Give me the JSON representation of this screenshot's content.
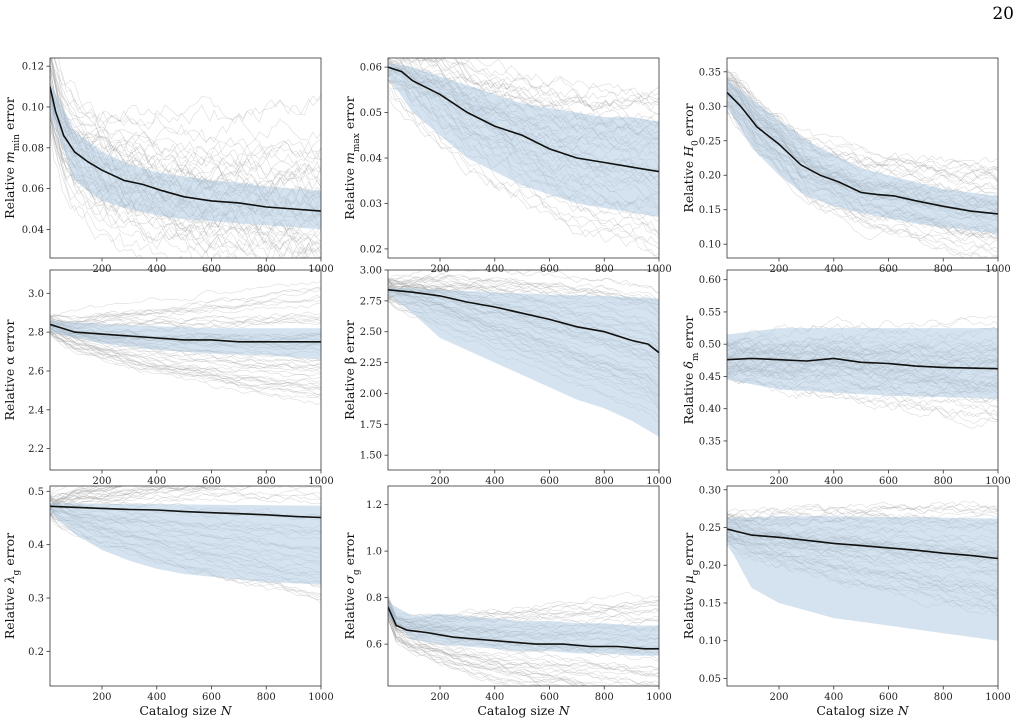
{
  "page_number": "20",
  "style": {
    "band_color": "#a9c8e0",
    "trace_color": "#9a9a9a",
    "median_color": "#111111"
  },
  "xlabel": "Catalog size N",
  "chart_data": [
    {
      "type": "line",
      "ylabel": "Relative m_min error",
      "xlim": [
        10,
        1000
      ],
      "ylim": [
        0.026,
        0.124
      ],
      "xticks": [
        200,
        400,
        600,
        800,
        1000
      ],
      "yticks": [
        0.04,
        0.06,
        0.08,
        0.1,
        0.12
      ],
      "ytick_labels": [
        "0.04",
        "0.06",
        "0.08",
        "0.10",
        "0.12"
      ],
      "median": {
        "x": [
          10,
          30,
          60,
          100,
          150,
          200,
          280,
          350,
          420,
          500,
          600,
          700,
          800,
          900,
          1000
        ],
        "y": [
          0.11,
          0.098,
          0.086,
          0.078,
          0.073,
          0.069,
          0.064,
          0.062,
          0.059,
          0.056,
          0.054,
          0.053,
          0.051,
          0.05,
          0.049
        ]
      },
      "band_upper": {
        "x": [
          10,
          100,
          200,
          300,
          400,
          500,
          600,
          700,
          800,
          900,
          1000
        ],
        "y": [
          0.112,
          0.088,
          0.078,
          0.072,
          0.068,
          0.066,
          0.064,
          0.063,
          0.061,
          0.06,
          0.059
        ]
      },
      "band_lower": {
        "x": [
          10,
          100,
          200,
          300,
          400,
          500,
          600,
          700,
          800,
          900,
          1000
        ],
        "y": [
          0.098,
          0.064,
          0.054,
          0.05,
          0.047,
          0.045,
          0.044,
          0.043,
          0.042,
          0.041,
          0.04
        ]
      },
      "trace_spread": [
        0.02,
        0.035
      ],
      "trace_seed": 11
    },
    {
      "type": "line",
      "ylabel": "Relative m_max error",
      "xlim": [
        10,
        1000
      ],
      "ylim": [
        0.018,
        0.062
      ],
      "xticks": [
        200,
        400,
        600,
        800,
        1000
      ],
      "yticks": [
        0.02,
        0.03,
        0.04,
        0.05,
        0.06
      ],
      "ytick_labels": [
        "0.02",
        "0.03",
        "0.04",
        "0.05",
        "0.06"
      ],
      "median": {
        "x": [
          10,
          60,
          100,
          200,
          300,
          400,
          500,
          600,
          700,
          800,
          900,
          1000
        ],
        "y": [
          0.06,
          0.059,
          0.057,
          0.054,
          0.05,
          0.047,
          0.045,
          0.042,
          0.04,
          0.039,
          0.038,
          0.037
        ]
      },
      "band_upper": {
        "x": [
          10,
          100,
          200,
          300,
          400,
          500,
          600,
          700,
          800,
          900,
          1000
        ],
        "y": [
          0.061,
          0.06,
          0.058,
          0.056,
          0.054,
          0.052,
          0.051,
          0.05,
          0.049,
          0.049,
          0.048
        ]
      },
      "band_lower": {
        "x": [
          10,
          100,
          200,
          300,
          400,
          500,
          600,
          700,
          800,
          900,
          1000
        ],
        "y": [
          0.058,
          0.05,
          0.045,
          0.04,
          0.037,
          0.034,
          0.032,
          0.03,
          0.029,
          0.028,
          0.027
        ]
      },
      "trace_spread": [
        0.006,
        0.014
      ],
      "trace_seed": 23
    },
    {
      "type": "line",
      "ylabel": "Relative H_0 error",
      "xlim": [
        10,
        1000
      ],
      "ylim": [
        0.08,
        0.37
      ],
      "xticks": [
        200,
        400,
        600,
        800,
        1000
      ],
      "yticks": [
        0.1,
        0.15,
        0.2,
        0.25,
        0.3,
        0.35
      ],
      "ytick_labels": [
        "0.10",
        "0.15",
        "0.20",
        "0.25",
        "0.30",
        "0.35"
      ],
      "median": {
        "x": [
          10,
          60,
          120,
          200,
          280,
          350,
          420,
          500,
          560,
          620,
          700,
          800,
          900,
          1000
        ],
        "y": [
          0.32,
          0.3,
          0.27,
          0.245,
          0.215,
          0.2,
          0.19,
          0.175,
          0.172,
          0.17,
          0.163,
          0.155,
          0.148,
          0.144
        ]
      },
      "band_upper": {
        "x": [
          10,
          100,
          200,
          300,
          400,
          500,
          600,
          700,
          800,
          900,
          1000
        ],
        "y": [
          0.34,
          0.31,
          0.28,
          0.25,
          0.23,
          0.21,
          0.2,
          0.19,
          0.18,
          0.175,
          0.17
        ]
      },
      "band_lower": {
        "x": [
          10,
          100,
          200,
          300,
          400,
          500,
          600,
          700,
          800,
          900,
          1000
        ],
        "y": [
          0.3,
          0.24,
          0.2,
          0.17,
          0.155,
          0.145,
          0.138,
          0.13,
          0.125,
          0.12,
          0.115
        ]
      },
      "trace_spread": [
        0.03,
        0.05
      ],
      "trace_seed": 37
    },
    {
      "type": "line",
      "ylabel": "Relative α error",
      "xlim": [
        10,
        1000
      ],
      "ylim": [
        2.09,
        3.12
      ],
      "xticks": [
        200,
        400,
        600,
        800,
        1000
      ],
      "yticks": [
        2.2,
        2.4,
        2.6,
        2.8,
        3.0
      ],
      "ytick_labels": [
        "2.2",
        "2.4",
        "2.6",
        "2.8",
        "3.0"
      ],
      "median": {
        "x": [
          10,
          100,
          200,
          300,
          400,
          500,
          600,
          700,
          800,
          900,
          1000
        ],
        "y": [
          2.84,
          2.8,
          2.79,
          2.78,
          2.77,
          2.76,
          2.76,
          2.75,
          2.75,
          2.75,
          2.75
        ]
      },
      "band_upper": {
        "x": [
          10,
          200,
          400,
          600,
          800,
          1000
        ],
        "y": [
          2.86,
          2.84,
          2.83,
          2.82,
          2.82,
          2.82
        ]
      },
      "band_lower": {
        "x": [
          10,
          200,
          400,
          600,
          800,
          1000
        ],
        "y": [
          2.8,
          2.74,
          2.71,
          2.69,
          2.68,
          2.66
        ]
      },
      "trace_spread": [
        0.05,
        0.3
      ],
      "trace_seed": 41
    },
    {
      "type": "line",
      "ylabel": "Relative β error",
      "xlim": [
        10,
        1000
      ],
      "ylim": [
        1.38,
        3.0
      ],
      "xticks": [
        200,
        400,
        600,
        800,
        1000
      ],
      "yticks": [
        1.5,
        1.75,
        2.0,
        2.25,
        2.5,
        2.75,
        3.0
      ],
      "ytick_labels": [
        "1.50",
        "1.75",
        "2.00",
        "2.25",
        "2.50",
        "2.75",
        "3.00"
      ],
      "median": {
        "x": [
          10,
          100,
          200,
          300,
          400,
          500,
          600,
          700,
          800,
          900,
          960,
          1000
        ],
        "y": [
          2.84,
          2.82,
          2.79,
          2.74,
          2.7,
          2.65,
          2.6,
          2.54,
          2.5,
          2.43,
          2.4,
          2.33
        ]
      },
      "band_upper": {
        "x": [
          10,
          200,
          400,
          600,
          800,
          1000
        ],
        "y": [
          2.86,
          2.84,
          2.82,
          2.8,
          2.79,
          2.77
        ]
      },
      "band_lower": {
        "x": [
          10,
          100,
          200,
          300,
          400,
          500,
          600,
          700,
          800,
          900,
          1000
        ],
        "y": [
          2.8,
          2.65,
          2.45,
          2.35,
          2.25,
          2.15,
          2.05,
          1.95,
          1.88,
          1.78,
          1.65
        ]
      },
      "trace_spread": [
        0.1,
        0.5
      ],
      "trace_seed": 53
    },
    {
      "type": "line",
      "ylabel": "Relative δ_m error",
      "xlim": [
        10,
        1000
      ],
      "ylim": [
        0.305,
        0.615
      ],
      "xticks": [
        200,
        400,
        600,
        800,
        1000
      ],
      "yticks": [
        0.35,
        0.4,
        0.45,
        0.5,
        0.55,
        0.6
      ],
      "ytick_labels": [
        "0.35",
        "0.40",
        "0.45",
        "0.50",
        "0.55",
        "0.60"
      ],
      "median": {
        "x": [
          10,
          100,
          200,
          300,
          400,
          500,
          600,
          700,
          800,
          900,
          1000
        ],
        "y": [
          0.476,
          0.478,
          0.476,
          0.474,
          0.478,
          0.472,
          0.47,
          0.466,
          0.464,
          0.463,
          0.462
        ]
      },
      "band_upper": {
        "x": [
          10,
          200,
          400,
          600,
          800,
          1000
        ],
        "y": [
          0.515,
          0.525,
          0.525,
          0.525,
          0.525,
          0.525
        ]
      },
      "band_lower": {
        "x": [
          10,
          200,
          400,
          600,
          800,
          1000
        ],
        "y": [
          0.445,
          0.43,
          0.425,
          0.42,
          0.418,
          0.415
        ]
      },
      "trace_spread": [
        0.03,
        0.06
      ],
      "trace_seed": 67
    },
    {
      "type": "line",
      "ylabel": "Relative λ_g error",
      "xlim": [
        10,
        1000
      ],
      "ylim": [
        0.135,
        0.51
      ],
      "xticks": [
        200,
        400,
        600,
        800,
        1000
      ],
      "yticks": [
        0.2,
        0.3,
        0.4,
        0.5
      ],
      "ytick_labels": [
        "0.2",
        "0.3",
        "0.4",
        "0.5"
      ],
      "median": {
        "x": [
          10,
          100,
          200,
          300,
          400,
          500,
          600,
          700,
          800,
          900,
          1000
        ],
        "y": [
          0.472,
          0.47,
          0.468,
          0.466,
          0.465,
          0.462,
          0.46,
          0.458,
          0.456,
          0.453,
          0.451
        ]
      },
      "band_upper": {
        "x": [
          10,
          200,
          400,
          600,
          800,
          1000
        ],
        "y": [
          0.478,
          0.477,
          0.476,
          0.475,
          0.474,
          0.473
        ]
      },
      "band_lower": {
        "x": [
          10,
          100,
          200,
          300,
          400,
          500,
          600,
          700,
          800,
          900,
          1000
        ],
        "y": [
          0.46,
          0.42,
          0.39,
          0.37,
          0.355,
          0.345,
          0.34,
          0.335,
          0.33,
          0.328,
          0.325
        ]
      },
      "trace_spread": [
        0.02,
        0.15
      ],
      "trace_seed": 79
    },
    {
      "type": "line",
      "ylabel": "Relative σ_g error",
      "xlim": [
        10,
        1000
      ],
      "ylim": [
        0.42,
        1.28
      ],
      "xticks": [
        200,
        400,
        600,
        800,
        1000
      ],
      "yticks": [
        0.6,
        0.8,
        1.0,
        1.2
      ],
      "ytick_labels": [
        "0.6",
        "0.8",
        "1.0",
        "1.2"
      ],
      "median": {
        "x": [
          10,
          40,
          80,
          150,
          250,
          350,
          450,
          550,
          650,
          750,
          850,
          950,
          1000
        ],
        "y": [
          0.76,
          0.68,
          0.66,
          0.65,
          0.63,
          0.62,
          0.61,
          0.6,
          0.6,
          0.59,
          0.59,
          0.58,
          0.58
        ]
      },
      "band_upper": {
        "x": [
          10,
          100,
          200,
          300,
          400,
          500,
          600,
          700,
          800,
          900,
          1000
        ],
        "y": [
          0.78,
          0.72,
          0.73,
          0.72,
          0.71,
          0.7,
          0.7,
          0.69,
          0.69,
          0.68,
          0.68
        ]
      },
      "band_lower": {
        "x": [
          10,
          100,
          200,
          300,
          400,
          500,
          600,
          700,
          800,
          900,
          1000
        ],
        "y": [
          0.72,
          0.62,
          0.6,
          0.59,
          0.58,
          0.57,
          0.57,
          0.56,
          0.56,
          0.55,
          0.55
        ]
      },
      "trace_spread": [
        0.05,
        0.25
      ],
      "trace_seed": 83
    },
    {
      "type": "line",
      "ylabel": "Relative μ_g error",
      "xlim": [
        10,
        1000
      ],
      "ylim": [
        0.04,
        0.305
      ],
      "xticks": [
        200,
        400,
        600,
        800,
        1000
      ],
      "yticks": [
        0.05,
        0.1,
        0.15,
        0.2,
        0.25,
        0.3
      ],
      "ytick_labels": [
        "0.05",
        "0.10",
        "0.15",
        "0.20",
        "0.25",
        "0.30"
      ],
      "median": {
        "x": [
          10,
          100,
          200,
          300,
          400,
          500,
          600,
          700,
          800,
          900,
          1000
        ],
        "y": [
          0.248,
          0.24,
          0.237,
          0.233,
          0.229,
          0.226,
          0.223,
          0.22,
          0.216,
          0.213,
          0.209
        ]
      },
      "band_upper": {
        "x": [
          10,
          200,
          400,
          600,
          800,
          1000
        ],
        "y": [
          0.262,
          0.265,
          0.265,
          0.264,
          0.263,
          0.262
        ]
      },
      "band_lower": {
        "x": [
          10,
          100,
          200,
          300,
          400,
          500,
          600,
          700,
          800,
          900,
          1000
        ],
        "y": [
          0.23,
          0.17,
          0.15,
          0.14,
          0.13,
          0.125,
          0.12,
          0.115,
          0.11,
          0.105,
          0.1
        ]
      },
      "trace_spread": [
        0.02,
        0.06
      ],
      "trace_seed": 97
    }
  ]
}
